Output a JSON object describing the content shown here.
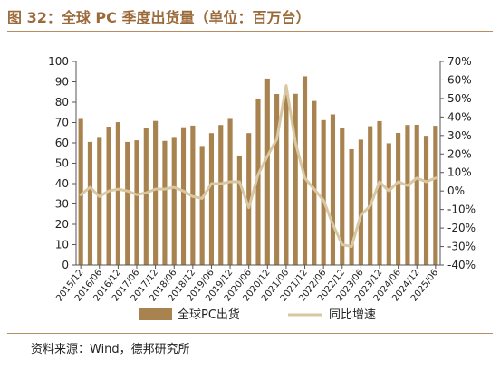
{
  "title": "图 32：全球 PC 季度出货量（单位：百万台）",
  "source": "资料来源：Wind，德邦研究所",
  "colors": {
    "bar": "#a9834f",
    "line": "#d8c7a0",
    "accent": "#9b6a3a"
  },
  "chart_data": {
    "type": "bar",
    "x_tick_labels": [
      "2015/12",
      "2016/06",
      "2016/12",
      "2017/06",
      "2017/12",
      "2018/06",
      "2018/12",
      "2019/06",
      "2019/12",
      "2020/06",
      "2020/12",
      "2021/06",
      "2021/12",
      "2022/06",
      "2022/12",
      "2023/06",
      "2023/12",
      "2024/06",
      "2024/12",
      "2025/06"
    ],
    "categories": [
      "2015Q4",
      "2016Q1",
      "2016Q2",
      "2016Q3",
      "2016Q4",
      "2017Q1",
      "2017Q2",
      "2017Q3",
      "2017Q4",
      "2018Q1",
      "2018Q2",
      "2018Q3",
      "2018Q4",
      "2019Q1",
      "2019Q2",
      "2019Q3",
      "2019Q4",
      "2020Q1",
      "2020Q2",
      "2020Q3",
      "2020Q4",
      "2021Q1",
      "2021Q2",
      "2021Q3",
      "2021Q4",
      "2022Q1",
      "2022Q2",
      "2022Q3",
      "2022Q4",
      "2023Q1",
      "2023Q2",
      "2023Q3",
      "2023Q4",
      "2024Q1",
      "2024Q2",
      "2024Q3",
      "2024Q4",
      "2025Q1",
      "2025Q2"
    ],
    "series": [
      {
        "name": "全球PC出货",
        "axis": "left",
        "type": "bar",
        "values": [
          71.8,
          60.5,
          62.5,
          68.0,
          70.2,
          60.5,
          61.3,
          67.5,
          70.8,
          61.0,
          62.5,
          67.7,
          68.5,
          58.5,
          64.8,
          68.8,
          71.8,
          53.8,
          64.8,
          81.8,
          91.6,
          84.0,
          83.6,
          84.1,
          92.7,
          80.6,
          71.2,
          74.0,
          67.2,
          56.9,
          61.6,
          68.2,
          70.7,
          59.8,
          64.9,
          68.8,
          68.9,
          63.5,
          68.4
        ]
      },
      {
        "name": "同比增速",
        "axis": "right",
        "type": "line",
        "values": [
          -0.02,
          0.02,
          -0.03,
          0.0,
          0.01,
          0.0,
          -0.02,
          -0.01,
          0.01,
          0.01,
          0.02,
          0.0,
          -0.03,
          -0.04,
          0.04,
          0.04,
          0.05,
          0.05,
          -0.09,
          0.09,
          0.19,
          0.28,
          0.57,
          0.26,
          0.07,
          0.01,
          -0.05,
          -0.18,
          -0.29,
          -0.3,
          -0.13,
          -0.08,
          0.05,
          0.0,
          0.05,
          0.03,
          0.07,
          0.05,
          0.07
        ]
      }
    ],
    "left_axis": {
      "ylim": [
        0,
        100
      ],
      "ticks": [
        "0",
        "10",
        "20",
        "30",
        "40",
        "50",
        "60",
        "70",
        "80",
        "90",
        "100"
      ]
    },
    "right_axis": {
      "ylim": [
        -0.4,
        0.7
      ],
      "ticks": [
        "-40%",
        "-30%",
        "-20%",
        "-10%",
        "0%",
        "10%",
        "20%",
        "30%",
        "40%",
        "50%",
        "60%",
        "70%"
      ]
    },
    "legend": {
      "placement": "bottom-center",
      "items": [
        "全球PC出货",
        "同比增速"
      ]
    },
    "grid": false
  }
}
